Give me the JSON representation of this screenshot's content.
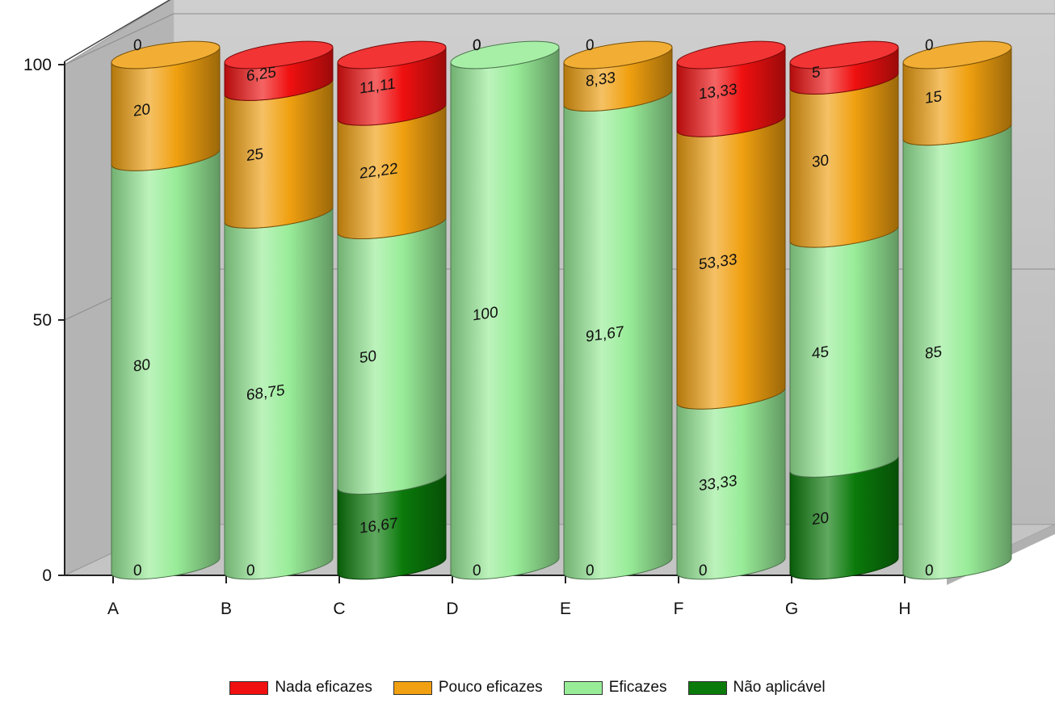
{
  "chart_data": {
    "type": "bar",
    "stacked": true,
    "style": "3d-cylinder",
    "categories": [
      "A",
      "B",
      "C",
      "D",
      "E",
      "F",
      "G",
      "H"
    ],
    "series": [
      {
        "name": "Não aplicável",
        "color": "#0a7a0a",
        "values": [
          0,
          0,
          16.67,
          0,
          0,
          0,
          20,
          0
        ]
      },
      {
        "name": "Eficazes",
        "color": "#98ec98",
        "values": [
          80,
          68.75,
          50,
          100,
          91.67,
          33.33,
          45,
          85
        ]
      },
      {
        "name": "Pouco eficazes",
        "color": "#f0a010",
        "values": [
          20,
          25,
          22.22,
          0,
          8.33,
          53.33,
          30,
          15
        ]
      },
      {
        "name": "Nada eficazes",
        "color": "#f01010",
        "values": [
          0,
          6.25,
          11.11,
          0,
          0,
          13.33,
          5,
          0
        ]
      }
    ],
    "data_labels": [
      [
        "0",
        "0",
        "16,67",
        "0",
        "0",
        "0",
        "20",
        "0"
      ],
      [
        "80",
        "68,75",
        "50",
        "100",
        "91,67",
        "33,33",
        "45",
        "85"
      ],
      [
        "20",
        "25",
        "22,22",
        "0",
        "8,33",
        "53,33",
        "30",
        "15"
      ],
      [
        "0",
        "6,25",
        "11,11",
        "0",
        "0",
        "13,33",
        "5",
        "0"
      ]
    ],
    "yticks": [
      "0",
      "50",
      "100"
    ],
    "ylim": [
      0,
      100
    ],
    "grid": true,
    "legend_position": "bottom",
    "title": "",
    "xlabel": "",
    "ylabel": ""
  },
  "legend": [
    {
      "label": "Nada eficazes",
      "color": "#f01010"
    },
    {
      "label": "Pouco eficazes",
      "color": "#f0a010"
    },
    {
      "label": "Eficazes",
      "color": "#98ec98"
    },
    {
      "label": "Não aplicável",
      "color": "#0a7a0a"
    }
  ]
}
